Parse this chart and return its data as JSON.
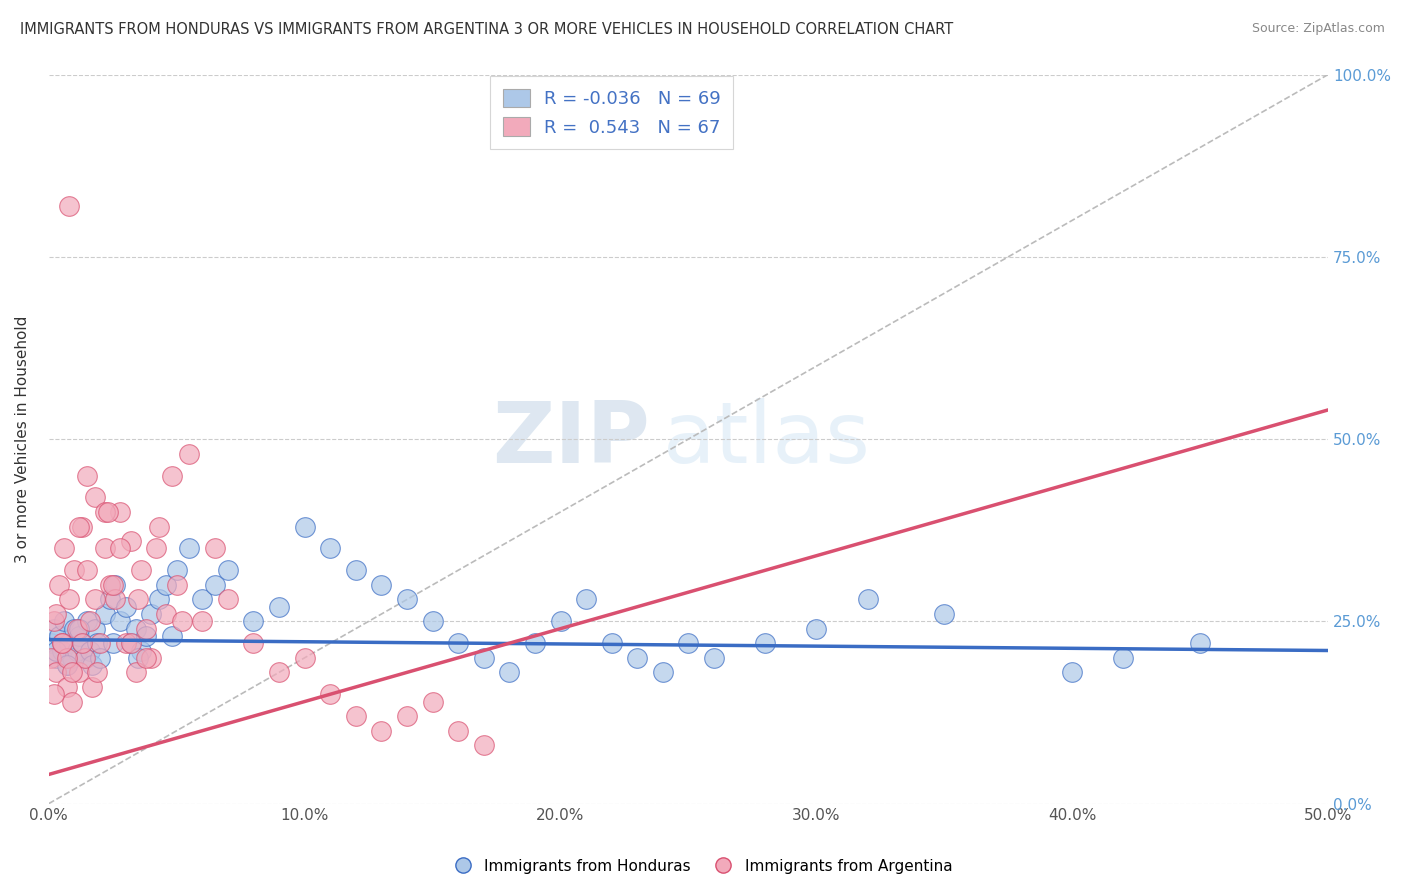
{
  "title": "IMMIGRANTS FROM HONDURAS VS IMMIGRANTS FROM ARGENTINA 3 OR MORE VEHICLES IN HOUSEHOLD CORRELATION CHART",
  "source": "Source: ZipAtlas.com",
  "ylabel": "3 or more Vehicles in Household",
  "legend_label1": "Immigrants from Honduras",
  "legend_label2": "Immigrants from Argentina",
  "R1": -0.036,
  "N1": 69,
  "R2": 0.543,
  "N2": 67,
  "color_honduras": "#adc8e8",
  "color_argentina": "#f2aabb",
  "color_trend_honduras": "#3a6cc4",
  "color_trend_argentina": "#d95070",
  "xmin": 0.0,
  "xmax": 0.5,
  "ymin": 0.0,
  "ymax": 1.0,
  "xticks": [
    0.0,
    0.1,
    0.2,
    0.3,
    0.4,
    0.5
  ],
  "xtick_labels": [
    "0.0%",
    "10.0%",
    "20.0%",
    "30.0%",
    "40.0%",
    "50.0%"
  ],
  "yticks": [
    0.0,
    0.25,
    0.5,
    0.75,
    1.0
  ],
  "ytick_labels": [
    "0.0%",
    "25.0%",
    "50.0%",
    "75.0%",
    "100.0%"
  ],
  "watermark_zip": "ZIP",
  "watermark_atlas": "atlas",
  "background_color": "#ffffff",
  "grid_color": "#cccccc",
  "right_ytick_color": "#5b9bd5",
  "trend_h_x0": 0.0,
  "trend_h_y0": 0.225,
  "trend_h_x1": 0.5,
  "trend_h_y1": 0.21,
  "trend_a_x0": 0.0,
  "trend_a_y0": 0.04,
  "trend_a_x1": 0.5,
  "trend_a_y1": 0.54,
  "honduras_x": [
    0.001,
    0.002,
    0.003,
    0.004,
    0.005,
    0.006,
    0.007,
    0.008,
    0.009,
    0.01,
    0.011,
    0.012,
    0.013,
    0.014,
    0.015,
    0.016,
    0.017,
    0.018,
    0.019,
    0.02,
    0.022,
    0.024,
    0.026,
    0.028,
    0.03,
    0.032,
    0.034,
    0.036,
    0.038,
    0.04,
    0.043,
    0.046,
    0.05,
    0.055,
    0.06,
    0.065,
    0.07,
    0.08,
    0.09,
    0.1,
    0.11,
    0.12,
    0.13,
    0.14,
    0.15,
    0.16,
    0.17,
    0.18,
    0.19,
    0.2,
    0.21,
    0.22,
    0.23,
    0.24,
    0.25,
    0.26,
    0.28,
    0.3,
    0.32,
    0.35,
    0.4,
    0.42,
    0.45,
    0.003,
    0.007,
    0.012,
    0.025,
    0.035,
    0.048
  ],
  "honduras_y": [
    0.22,
    0.24,
    0.2,
    0.23,
    0.21,
    0.25,
    0.19,
    0.22,
    0.2,
    0.24,
    0.21,
    0.23,
    0.22,
    0.2,
    0.25,
    0.21,
    0.19,
    0.24,
    0.22,
    0.2,
    0.26,
    0.28,
    0.3,
    0.25,
    0.27,
    0.22,
    0.24,
    0.21,
    0.23,
    0.26,
    0.28,
    0.3,
    0.32,
    0.35,
    0.28,
    0.3,
    0.32,
    0.25,
    0.27,
    0.38,
    0.35,
    0.32,
    0.3,
    0.28,
    0.25,
    0.22,
    0.2,
    0.18,
    0.22,
    0.25,
    0.28,
    0.22,
    0.2,
    0.18,
    0.22,
    0.2,
    0.22,
    0.24,
    0.28,
    0.26,
    0.18,
    0.2,
    0.22,
    0.21,
    0.19,
    0.24,
    0.22,
    0.2,
    0.23
  ],
  "argentina_x": [
    0.001,
    0.002,
    0.003,
    0.004,
    0.005,
    0.006,
    0.007,
    0.008,
    0.009,
    0.01,
    0.011,
    0.012,
    0.013,
    0.014,
    0.015,
    0.016,
    0.017,
    0.018,
    0.019,
    0.02,
    0.022,
    0.024,
    0.026,
    0.028,
    0.03,
    0.032,
    0.034,
    0.036,
    0.038,
    0.04,
    0.043,
    0.046,
    0.05,
    0.055,
    0.06,
    0.065,
    0.07,
    0.08,
    0.09,
    0.1,
    0.11,
    0.12,
    0.13,
    0.14,
    0.15,
    0.16,
    0.17,
    0.003,
    0.007,
    0.012,
    0.025,
    0.035,
    0.048,
    0.015,
    0.022,
    0.032,
    0.042,
    0.052,
    0.002,
    0.005,
    0.009,
    0.018,
    0.028,
    0.038,
    0.008,
    0.013,
    0.023
  ],
  "argentina_y": [
    0.2,
    0.25,
    0.18,
    0.3,
    0.22,
    0.35,
    0.16,
    0.28,
    0.14,
    0.32,
    0.24,
    0.18,
    0.38,
    0.2,
    0.45,
    0.25,
    0.16,
    0.42,
    0.18,
    0.22,
    0.35,
    0.3,
    0.28,
    0.4,
    0.22,
    0.36,
    0.18,
    0.32,
    0.24,
    0.2,
    0.38,
    0.26,
    0.3,
    0.48,
    0.25,
    0.35,
    0.28,
    0.22,
    0.18,
    0.2,
    0.15,
    0.12,
    0.1,
    0.12,
    0.14,
    0.1,
    0.08,
    0.26,
    0.2,
    0.38,
    0.3,
    0.28,
    0.45,
    0.32,
    0.4,
    0.22,
    0.35,
    0.25,
    0.15,
    0.22,
    0.18,
    0.28,
    0.35,
    0.2,
    0.82,
    0.22,
    0.4
  ]
}
